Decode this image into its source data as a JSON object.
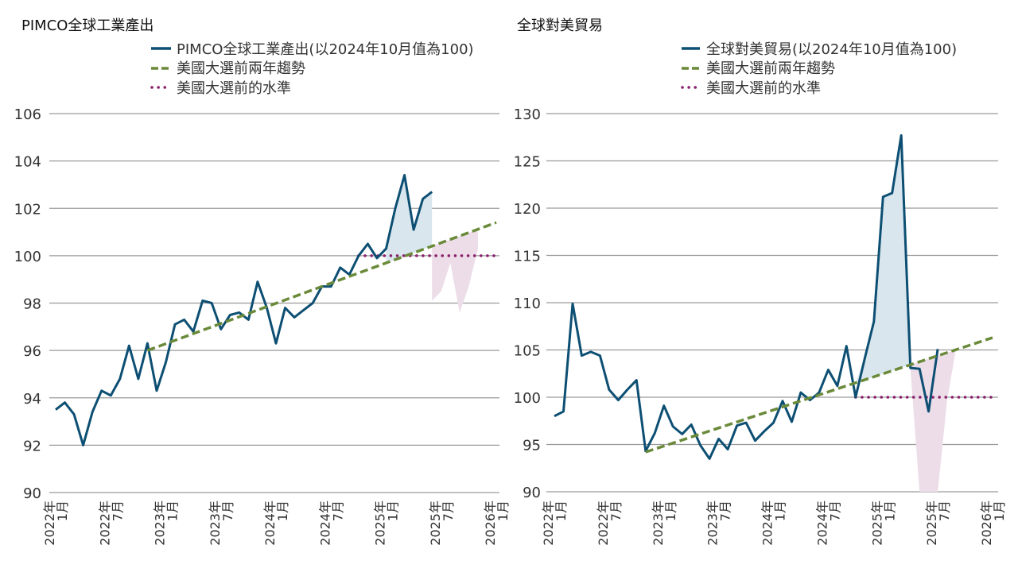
{
  "colors": {
    "series": "#0d4f73",
    "trend": "#6a8a3a",
    "level": "#8a1f6c",
    "above_fill": "#d9e6ee",
    "below_fill": "#ecdde8",
    "grid": "#9a9a9a"
  },
  "chart_data": [
    {
      "type": "line",
      "title": "PIMCO全球工業產出",
      "legend": [
        "PIMCO全球工業產出(以2024年10月值為100)",
        "美國大選前兩年趨勢",
        "美國大選前的水準"
      ],
      "legend_placement": "top",
      "ylim": [
        90,
        106
      ],
      "yticks": [
        90,
        92,
        94,
        96,
        98,
        100,
        102,
        104,
        106
      ],
      "xlim": [
        "2022-01",
        "2026-01"
      ],
      "xtick_labels": [
        [
          "2022年",
          "1月"
        ],
        [
          "2022年",
          "7月"
        ],
        [
          "2023年",
          "1月"
        ],
        [
          "2023年",
          "7月"
        ],
        [
          "2024年",
          "1月"
        ],
        [
          "2024年",
          "7月"
        ],
        [
          "2025年",
          "1月"
        ],
        [
          "2025年",
          "7月"
        ],
        [
          "2026年",
          "1月"
        ]
      ],
      "grid": "horizontal",
      "series": [
        {
          "name": "PIMCO全球工業產出(以2024年10月值為100)",
          "x": [
            "2022-01",
            "2022-02",
            "2022-03",
            "2022-04",
            "2022-05",
            "2022-06",
            "2022-07",
            "2022-08",
            "2022-09",
            "2022-10",
            "2022-11",
            "2022-12",
            "2023-01",
            "2023-02",
            "2023-03",
            "2023-04",
            "2023-05",
            "2023-06",
            "2023-07",
            "2023-08",
            "2023-09",
            "2023-10",
            "2023-11",
            "2023-12",
            "2024-01",
            "2024-02",
            "2024-03",
            "2024-04",
            "2024-05",
            "2024-06",
            "2024-07",
            "2024-08",
            "2024-09",
            "2024-10",
            "2024-11",
            "2024-12",
            "2025-01",
            "2025-02",
            "2025-03",
            "2025-04",
            "2025-05",
            "2025-06"
          ],
          "values": [
            93.5,
            93.8,
            93.3,
            92.0,
            93.4,
            94.3,
            94.1,
            94.8,
            96.2,
            94.8,
            96.3,
            94.3,
            95.5,
            97.1,
            97.3,
            96.8,
            98.1,
            98.0,
            96.9,
            97.5,
            97.6,
            97.3,
            98.9,
            97.8,
            96.3,
            97.8,
            97.4,
            97.7,
            98.0,
            98.7,
            98.7,
            99.5,
            99.2,
            100.0,
            100.5,
            99.9,
            100.3,
            102.0,
            103.4,
            101.1,
            102.4,
            102.7
          ]
        }
      ],
      "trend": {
        "name": "美國大選前兩年趨勢",
        "points": [
          {
            "x": "2022-11",
            "y": 96.0
          },
          {
            "x": "2026-01",
            "y": 101.4
          }
        ]
      },
      "level": {
        "name": "美國大選前的水準",
        "from": "2024-10",
        "to": "2026-01",
        "y": 100
      },
      "above_trend_fill": {
        "from": "2025-01",
        "to": "2025-06"
      },
      "below_trend_band": {
        "x": [
          "2025-06",
          "2025-07",
          "2025-08",
          "2025-09",
          "2025-10",
          "2025-11"
        ],
        "lower": [
          98.1,
          98.5,
          99.7,
          97.6,
          98.7,
          100.3
        ]
      }
    },
    {
      "type": "line",
      "title": "全球對美貿易",
      "legend": [
        "全球對美貿易(以2024年10月值為100)",
        "美國大選前兩年趨勢",
        "美國大選前的水準"
      ],
      "legend_placement": "top",
      "ylim": [
        90,
        130
      ],
      "yticks": [
        90,
        95,
        100,
        105,
        110,
        115,
        120,
        125,
        130
      ],
      "xlim": [
        "2022-01",
        "2026-01"
      ],
      "xtick_labels": [
        [
          "2022年",
          "1月"
        ],
        [
          "2022年",
          "7月"
        ],
        [
          "2023年",
          "1月"
        ],
        [
          "2023年",
          "7月"
        ],
        [
          "2024年",
          "1月"
        ],
        [
          "2024年",
          "7月"
        ],
        [
          "2025年",
          "1月"
        ],
        [
          "2025年",
          "7月"
        ],
        [
          "2026年",
          "1月"
        ]
      ],
      "grid": "horizontal",
      "series": [
        {
          "name": "全球對美貿易(以2024年10月值為100)",
          "x": [
            "2022-01",
            "2022-02",
            "2022-03",
            "2022-04",
            "2022-05",
            "2022-06",
            "2022-07",
            "2022-08",
            "2022-09",
            "2022-10",
            "2022-11",
            "2022-12",
            "2023-01",
            "2023-02",
            "2023-03",
            "2023-04",
            "2023-05",
            "2023-06",
            "2023-07",
            "2023-08",
            "2023-09",
            "2023-10",
            "2023-11",
            "2023-12",
            "2024-01",
            "2024-02",
            "2024-03",
            "2024-04",
            "2024-05",
            "2024-06",
            "2024-07",
            "2024-08",
            "2024-09",
            "2024-10",
            "2024-11",
            "2024-12",
            "2025-01",
            "2025-02",
            "2025-03",
            "2025-04",
            "2025-05",
            "2025-06",
            "2025-07"
          ],
          "values": [
            98.0,
            98.5,
            109.9,
            104.4,
            104.8,
            104.4,
            100.8,
            99.7,
            100.8,
            101.8,
            94.3,
            96.2,
            99.1,
            96.9,
            96.1,
            97.1,
            94.9,
            93.5,
            95.6,
            94.5,
            97.0,
            97.3,
            95.4,
            96.4,
            97.3,
            99.6,
            97.4,
            100.5,
            99.7,
            100.5,
            102.9,
            101.2,
            105.4,
            100.0,
            104.1,
            108.0,
            121.2,
            121.6,
            127.7,
            103.1,
            103.0,
            98.5,
            105.1
          ]
        }
      ],
      "trend": {
        "name": "美國大選前兩年趨勢",
        "points": [
          {
            "x": "2022-11",
            "y": 94.2
          },
          {
            "x": "2026-01",
            "y": 106.3
          }
        ]
      },
      "level": {
        "name": "美國大選前的水準",
        "from": "2024-10",
        "to": "2026-01",
        "y": 100
      },
      "above_trend_fill": {
        "from": "2024-10",
        "to": "2025-04"
      },
      "below_trend_band": {
        "x": [
          "2025-04",
          "2025-05",
          "2025-06",
          "2025-07",
          "2025-08",
          "2025-09"
        ],
        "lower": [
          103.1,
          90.0,
          90.0,
          90.0,
          99.5,
          105.2
        ]
      }
    }
  ]
}
